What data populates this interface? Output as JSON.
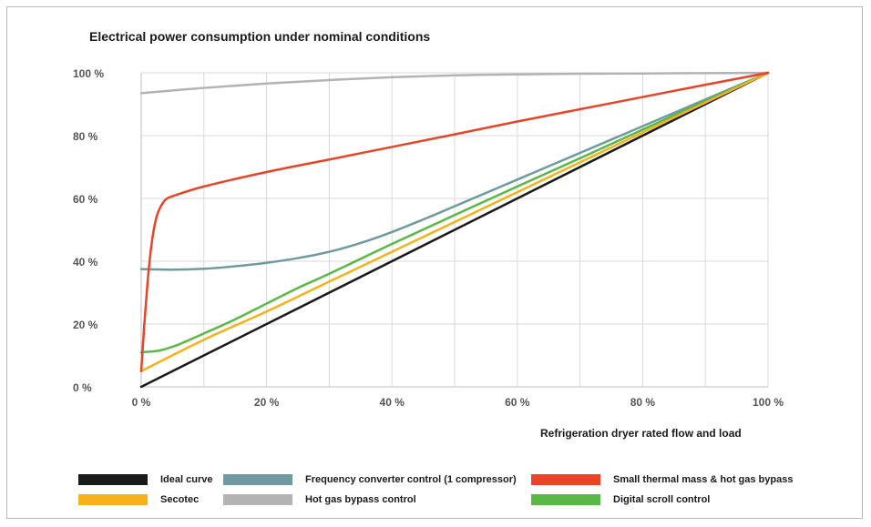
{
  "chart_data": {
    "type": "line",
    "title": "Electrical power consumption under nominal conditions",
    "xlabel": "Refrigeration dryer rated flow and load",
    "ylabel": "",
    "xlim": [
      0,
      100
    ],
    "ylim": [
      0,
      100
    ],
    "x_ticks": [
      "0 %",
      "20 %",
      "40 %",
      "60 %",
      "80 %",
      "100 %"
    ],
    "y_ticks": [
      "0 %",
      "20 %",
      "40 %",
      "60 %",
      "80 %",
      "100 %"
    ],
    "grid": true,
    "legend_position": "bottom",
    "series": [
      {
        "name": "Ideal curve",
        "color": "#1a1a1a",
        "points": [
          [
            0,
            0
          ],
          [
            100,
            100
          ]
        ]
      },
      {
        "name": "Secotec",
        "color": "#f7b21b",
        "points": [
          [
            0,
            5
          ],
          [
            10,
            15
          ],
          [
            20,
            24
          ],
          [
            30,
            33.5
          ],
          [
            40,
            43
          ],
          [
            50,
            52.5
          ],
          [
            60,
            62
          ],
          [
            70,
            71.5
          ],
          [
            80,
            81
          ],
          [
            90,
            90.5
          ],
          [
            100,
            100
          ]
        ]
      },
      {
        "name": "Frequency converter control (1 compressor)",
        "color": "#6f9ba0",
        "points": [
          [
            0,
            37.5
          ],
          [
            5,
            37.3
          ],
          [
            10,
            37.6
          ],
          [
            15,
            38.4
          ],
          [
            20,
            39.5
          ],
          [
            25,
            41
          ],
          [
            30,
            43
          ],
          [
            35,
            45.8
          ],
          [
            40,
            49.3
          ],
          [
            45,
            53.3
          ],
          [
            50,
            57.5
          ],
          [
            60,
            66
          ],
          [
            70,
            74.5
          ],
          [
            80,
            83
          ],
          [
            90,
            91.5
          ],
          [
            100,
            100
          ]
        ]
      },
      {
        "name": "Hot gas bypass control",
        "color": "#b3b3b3",
        "points": [
          [
            0,
            93.5
          ],
          [
            10,
            95.2
          ],
          [
            20,
            96.6
          ],
          [
            30,
            97.7
          ],
          [
            40,
            98.6
          ],
          [
            50,
            99.2
          ],
          [
            60,
            99.5
          ],
          [
            70,
            99.7
          ],
          [
            80,
            99.8
          ],
          [
            90,
            99.9
          ],
          [
            100,
            100
          ]
        ]
      },
      {
        "name": "Small thermal mass & hot gas bypass",
        "color": "#e8442a",
        "points": [
          [
            0,
            5
          ],
          [
            0.5,
            20
          ],
          [
            1,
            33
          ],
          [
            1.5,
            43
          ],
          [
            2,
            50
          ],
          [
            2.5,
            54.5
          ],
          [
            3,
            57
          ],
          [
            3.5,
            58.7
          ],
          [
            4,
            59.8
          ],
          [
            5,
            60.7
          ],
          [
            10,
            63.8
          ],
          [
            20,
            68.4
          ],
          [
            30,
            72.4
          ],
          [
            40,
            76.4
          ],
          [
            50,
            80.4
          ],
          [
            60,
            84.5
          ],
          [
            70,
            88.4
          ],
          [
            80,
            92.3
          ],
          [
            90,
            96.2
          ],
          [
            100,
            100
          ]
        ]
      },
      {
        "name": "Digital scroll control",
        "color": "#5ab847",
        "points": [
          [
            0,
            11
          ],
          [
            3,
            11.6
          ],
          [
            6,
            13.5
          ],
          [
            10,
            17
          ],
          [
            15,
            21.5
          ],
          [
            20,
            26.5
          ],
          [
            25,
            31.5
          ],
          [
            30,
            36
          ],
          [
            40,
            45.5
          ],
          [
            50,
            54.7
          ],
          [
            60,
            63.8
          ],
          [
            70,
            72.8
          ],
          [
            80,
            81.9
          ],
          [
            90,
            91
          ],
          [
            100,
            100
          ]
        ]
      }
    ]
  },
  "legend": [
    {
      "label": "Ideal curve",
      "color": "#1a1a1a"
    },
    {
      "label": "Frequency converter control (1 compressor)",
      "color": "#6f9ba0"
    },
    {
      "label": "Small thermal mass & hot gas bypass",
      "color": "#e8442a"
    },
    {
      "label": "Secotec",
      "color": "#f7b21b"
    },
    {
      "label": "Hot gas bypass control",
      "color": "#b3b3b3"
    },
    {
      "label": "Digital scroll control",
      "color": "#5ab847"
    }
  ]
}
